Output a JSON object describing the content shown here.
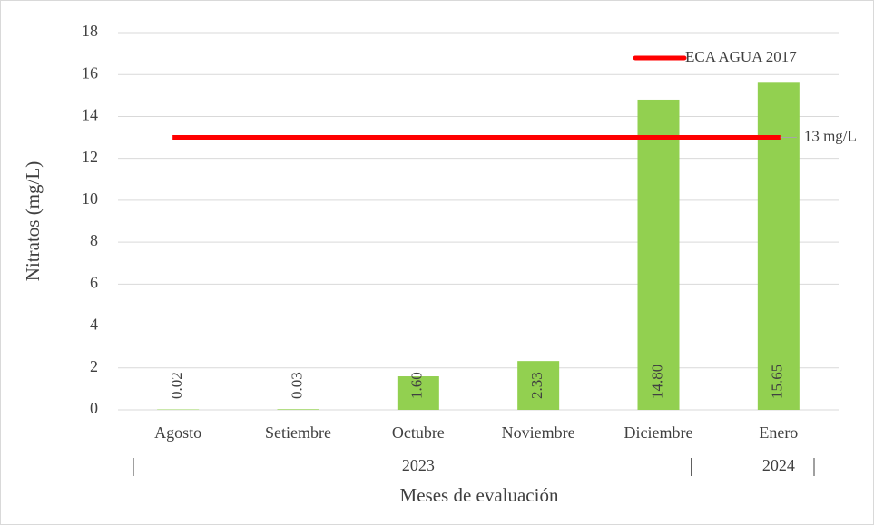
{
  "chart_data": {
    "type": "bar",
    "categories": [
      "Agosto",
      "Setiembre",
      "Octubre",
      "Noviembre",
      "Diciembre",
      "Enero"
    ],
    "values": [
      0.02,
      0.03,
      1.6,
      2.33,
      14.8,
      15.65
    ],
    "value_labels": [
      "0.02",
      "0.03",
      "1.60",
      "2.33",
      "14.80",
      "15.65"
    ],
    "color": "#92d050",
    "groups": [
      {
        "label": "2023",
        "count": 5
      },
      {
        "label": "2024",
        "count": 1
      }
    ],
    "reference_line": {
      "name": "ECA AGUA 2017",
      "value": 13,
      "label": "13 mg/L",
      "color": "#ff0000"
    },
    "xlabel": "Meses de evaluación",
    "ylabel": "Nitratos (mg/L)",
    "ylim": [
      0,
      18
    ],
    "yticks": [
      0,
      2,
      4,
      6,
      8,
      10,
      12,
      14,
      16,
      18
    ],
    "grid": true
  }
}
